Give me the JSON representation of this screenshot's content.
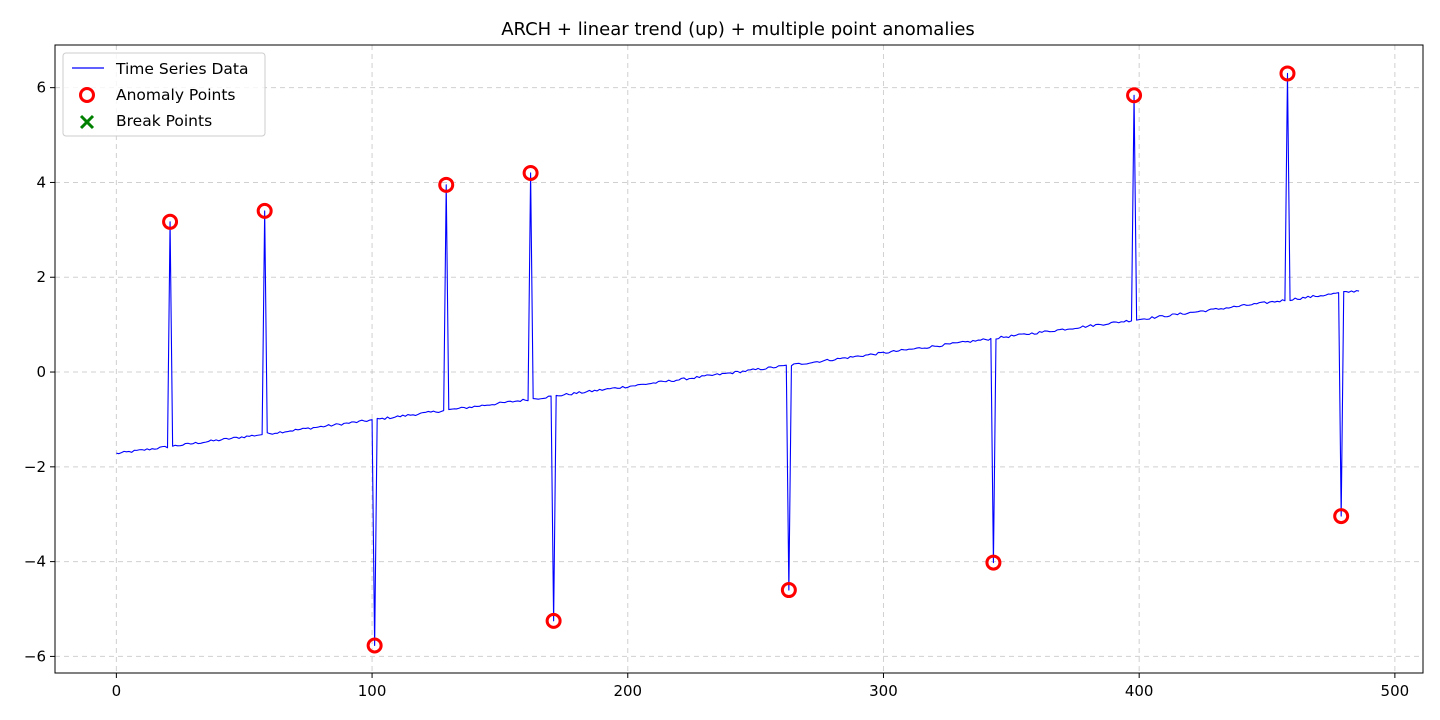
{
  "chart_data": {
    "type": "line",
    "title": "ARCH + linear trend (up) + multiple point anomalies",
    "xlabel": "",
    "ylabel": "",
    "xlim": [
      -24,
      511
    ],
    "ylim": [
      -6.35,
      6.9
    ],
    "x_ticks": [
      0,
      100,
      200,
      300,
      400,
      500
    ],
    "y_ticks": [
      -6,
      -4,
      -2,
      0,
      2,
      4,
      6
    ],
    "x_tick_labels": [
      "0",
      "100",
      "200",
      "300",
      "400",
      "500"
    ],
    "y_tick_labels": [
      "−6",
      "−4",
      "−2",
      "0",
      "2",
      "4",
      "6"
    ],
    "grid": true,
    "legend_position": "upper-left",
    "trend": {
      "x_start": 0,
      "x_end": 486,
      "y_start": -1.72,
      "y_end": 1.72
    },
    "series": [
      {
        "name": "Time Series Data",
        "kind": "line",
        "color": "#0000ff",
        "n_points": 487
      },
      {
        "name": "Anomaly Points",
        "kind": "scatter",
        "marker": "circle-open",
        "color": "#ff0000",
        "points": [
          {
            "x": 21,
            "y": 3.17
          },
          {
            "x": 58,
            "y": 3.4
          },
          {
            "x": 101,
            "y": -5.77
          },
          {
            "x": 129,
            "y": 3.95
          },
          {
            "x": 162,
            "y": 4.2
          },
          {
            "x": 171,
            "y": -5.25
          },
          {
            "x": 263,
            "y": -4.6
          },
          {
            "x": 343,
            "y": -4.02
          },
          {
            "x": 398,
            "y": 5.84
          },
          {
            "x": 458,
            "y": 6.3
          },
          {
            "x": 479,
            "y": -3.04
          }
        ]
      },
      {
        "name": "Break Points",
        "kind": "scatter",
        "marker": "x",
        "color": "#008000",
        "points": []
      }
    ]
  }
}
